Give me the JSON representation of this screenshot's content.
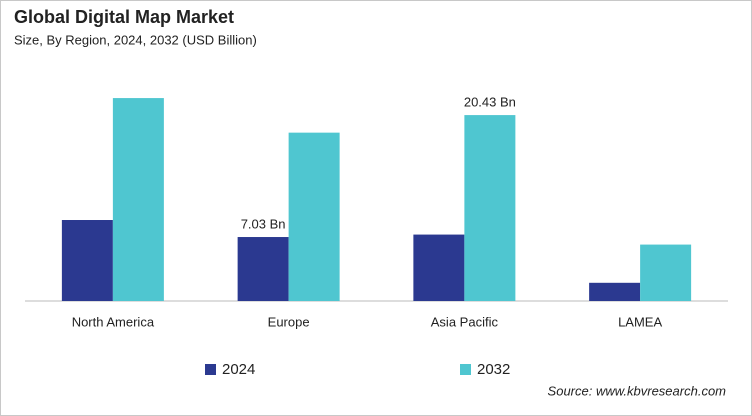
{
  "chart_data": {
    "type": "bar",
    "title": "Global Digital Map Market",
    "subtitle": "Size, By Region, 2024, 2032 (USD Billion)",
    "categories": [
      "North America",
      "Europe",
      "Asia Pacific",
      "LAMEA"
    ],
    "series": [
      {
        "name": "2024",
        "color": "#2b3990",
        "values": [
          8.9,
          7.03,
          7.3,
          2.0
        ],
        "value_labels": [
          null,
          "7.03 Bn",
          null,
          null
        ]
      },
      {
        "name": "2032",
        "color": "#4fc6d0",
        "values": [
          22.3,
          18.5,
          20.43,
          6.2
        ],
        "value_labels": [
          null,
          null,
          "20.43 Bn",
          null
        ]
      }
    ],
    "source": "Source: www.kbvresearch.com"
  }
}
